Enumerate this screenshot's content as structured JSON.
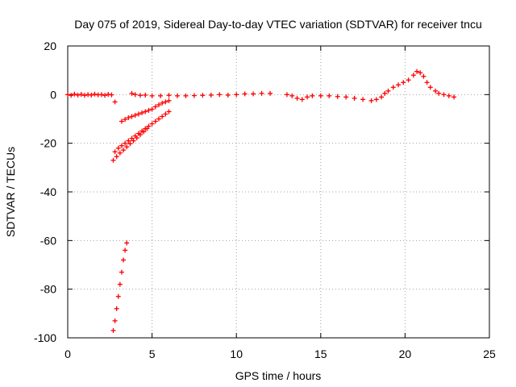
{
  "chart_data": {
    "type": "scatter",
    "title": "Day 075 of 2019, Sidereal Day-to-day VTEC variation (SDTVAR) for receiver tncu",
    "xlabel": "GPS time / hours",
    "ylabel": "SDTVAR / TECUs",
    "xlim": [
      0,
      25
    ],
    "ylim": [
      -100,
      20
    ],
    "x_ticks": [
      0,
      5,
      10,
      15,
      20,
      25
    ],
    "x_tick_labels": [
      "0",
      "5",
      "10",
      "15",
      "20",
      "25"
    ],
    "y_ticks": [
      -100,
      -80,
      -60,
      -40,
      -20,
      0,
      20
    ],
    "y_tick_labels": [
      "-100",
      "-80",
      "-60",
      "-40",
      "-20",
      "0",
      "20"
    ],
    "grid": true,
    "legend": "none",
    "marker": "+",
    "color": "#ff0000",
    "series": [
      {
        "points": [
          [
            0.0,
            0.0
          ],
          [
            0.2,
            -0.3
          ],
          [
            0.4,
            0.2
          ],
          [
            0.6,
            -0.2
          ],
          [
            0.8,
            0.1
          ],
          [
            1.0,
            -0.3
          ],
          [
            1.2,
            0.0
          ],
          [
            1.4,
            -0.2
          ],
          [
            1.6,
            0.2
          ],
          [
            1.8,
            -0.1
          ],
          [
            2.0,
            0.0
          ],
          [
            2.2,
            -0.3
          ],
          [
            2.4,
            0.1
          ],
          [
            2.6,
            -0.1
          ],
          [
            2.8,
            -3.0
          ],
          [
            2.8,
            -23.5
          ],
          [
            3.0,
            -22.0
          ],
          [
            3.2,
            -21.0
          ],
          [
            3.4,
            -20.0
          ],
          [
            3.6,
            -19.0
          ],
          [
            3.8,
            -18.0
          ],
          [
            4.0,
            -17.0
          ],
          [
            4.2,
            -16.0
          ],
          [
            4.4,
            -15.0
          ],
          [
            4.6,
            -14.0
          ],
          [
            4.8,
            -13.0
          ],
          [
            5.0,
            -12.0
          ],
          [
            5.2,
            -11.0
          ],
          [
            5.4,
            -10.0
          ],
          [
            5.6,
            -9.0
          ],
          [
            5.8,
            -8.0
          ],
          [
            6.0,
            -7.0
          ],
          [
            2.7,
            -27.0
          ],
          [
            2.9,
            -25.5
          ],
          [
            3.1,
            -24.0
          ],
          [
            3.3,
            -22.8
          ],
          [
            3.5,
            -21.5
          ],
          [
            3.7,
            -20.2
          ],
          [
            3.9,
            -19.0
          ],
          [
            4.1,
            -17.8
          ],
          [
            4.3,
            -16.5
          ],
          [
            4.5,
            -15.3
          ],
          [
            4.7,
            -14.0
          ],
          [
            3.2,
            -11.0
          ],
          [
            3.4,
            -10.2
          ],
          [
            3.6,
            -9.5
          ],
          [
            3.8,
            -9.0
          ],
          [
            4.0,
            -8.5
          ],
          [
            4.2,
            -8.0
          ],
          [
            4.4,
            -7.5
          ],
          [
            4.6,
            -7.0
          ],
          [
            4.8,
            -6.5
          ],
          [
            5.0,
            -6.0
          ],
          [
            5.2,
            -5.0
          ],
          [
            5.4,
            -4.2
          ],
          [
            5.6,
            -3.5
          ],
          [
            5.8,
            -3.0
          ],
          [
            6.0,
            -2.5
          ],
          [
            2.7,
            -97.0
          ],
          [
            2.8,
            -93.0
          ],
          [
            2.9,
            -88.0
          ],
          [
            3.0,
            -83.0
          ],
          [
            3.1,
            -78.0
          ],
          [
            3.2,
            -73.0
          ],
          [
            3.3,
            -68.0
          ],
          [
            3.4,
            -64.0
          ],
          [
            3.5,
            -61.0
          ],
          [
            3.8,
            0.5
          ],
          [
            4.0,
            0.0
          ],
          [
            4.3,
            -0.3
          ],
          [
            4.6,
            -0.2
          ],
          [
            5.0,
            -0.5
          ],
          [
            5.5,
            -0.5
          ],
          [
            6.0,
            -0.3
          ],
          [
            6.5,
            -0.5
          ],
          [
            7.0,
            -0.5
          ],
          [
            7.5,
            -0.4
          ],
          [
            8.0,
            -0.3
          ],
          [
            8.5,
            -0.2
          ],
          [
            9.0,
            0.0
          ],
          [
            9.5,
            -0.2
          ],
          [
            10.0,
            0.0
          ],
          [
            10.5,
            0.3
          ],
          [
            11.0,
            0.3
          ],
          [
            11.5,
            0.5
          ],
          [
            12.0,
            0.5
          ],
          [
            13.0,
            0.0
          ],
          [
            13.3,
            -0.5
          ],
          [
            13.6,
            -1.5
          ],
          [
            13.9,
            -2.0
          ],
          [
            14.2,
            -1.0
          ],
          [
            14.5,
            -0.5
          ],
          [
            15.0,
            -0.5
          ],
          [
            15.5,
            -0.5
          ],
          [
            16.0,
            -0.8
          ],
          [
            16.5,
            -1.0
          ],
          [
            17.0,
            -1.5
          ],
          [
            17.5,
            -2.0
          ],
          [
            18.0,
            -2.5
          ],
          [
            18.3,
            -2.0
          ],
          [
            18.6,
            -1.0
          ],
          [
            18.8,
            0.5
          ],
          [
            19.0,
            1.5
          ],
          [
            19.3,
            3.0
          ],
          [
            19.6,
            4.0
          ],
          [
            19.9,
            5.0
          ],
          [
            20.2,
            6.0
          ],
          [
            20.5,
            8.0
          ],
          [
            20.7,
            9.5
          ],
          [
            20.9,
            9.0
          ],
          [
            21.1,
            7.5
          ],
          [
            21.3,
            5.0
          ],
          [
            21.5,
            3.0
          ],
          [
            21.8,
            1.5
          ],
          [
            22.0,
            0.5
          ],
          [
            22.3,
            0.0
          ],
          [
            22.6,
            -0.5
          ],
          [
            22.9,
            -1.0
          ]
        ]
      }
    ]
  }
}
